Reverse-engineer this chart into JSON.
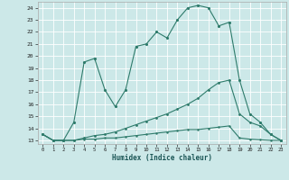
{
  "xlabel": "Humidex (Indice chaleur)",
  "bg_color": "#cce8e8",
  "grid_color": "#ffffff",
  "line_color": "#2e7b6b",
  "xlim_min": -0.5,
  "xlim_max": 23.5,
  "ylim_min": 12.7,
  "ylim_max": 24.5,
  "xticks": [
    0,
    1,
    2,
    3,
    4,
    5,
    6,
    7,
    8,
    9,
    10,
    11,
    12,
    13,
    14,
    15,
    16,
    17,
    18,
    19,
    20,
    21,
    22,
    23
  ],
  "yticks": [
    13,
    14,
    15,
    16,
    17,
    18,
    19,
    20,
    21,
    22,
    23,
    24
  ],
  "line1_x": [
    0,
    1,
    2,
    3,
    4,
    5,
    6,
    7,
    8,
    9,
    10,
    11,
    12,
    13,
    14,
    15,
    16,
    17,
    18,
    19,
    20,
    21,
    22,
    23
  ],
  "line1_y": [
    13.5,
    13.0,
    13.0,
    14.5,
    19.5,
    19.8,
    17.2,
    15.8,
    17.2,
    20.8,
    21.0,
    22.0,
    21.5,
    23.0,
    24.0,
    24.2,
    24.0,
    22.5,
    22.8,
    18.0,
    15.2,
    14.5,
    13.5,
    13.0
  ],
  "line2_x": [
    0,
    1,
    2,
    3,
    4,
    5,
    6,
    7,
    8,
    9,
    10,
    11,
    12,
    13,
    14,
    15,
    16,
    17,
    18,
    19,
    20,
    21,
    22,
    23
  ],
  "line2_y": [
    13.5,
    13.0,
    13.0,
    13.0,
    13.2,
    13.4,
    13.5,
    13.7,
    14.0,
    14.3,
    14.6,
    14.9,
    15.2,
    15.6,
    16.0,
    16.5,
    17.2,
    17.8,
    18.0,
    15.2,
    14.5,
    14.2,
    13.5,
    13.0
  ],
  "line3_x": [
    0,
    1,
    2,
    3,
    4,
    5,
    6,
    7,
    8,
    9,
    10,
    11,
    12,
    13,
    14,
    15,
    16,
    17,
    18,
    19,
    20,
    21,
    22,
    23
  ],
  "line3_y": [
    13.5,
    13.0,
    13.0,
    13.0,
    13.1,
    13.1,
    13.2,
    13.2,
    13.3,
    13.4,
    13.5,
    13.6,
    13.7,
    13.8,
    13.9,
    13.9,
    14.0,
    14.1,
    14.2,
    13.2,
    13.1,
    13.05,
    13.0,
    13.0
  ]
}
